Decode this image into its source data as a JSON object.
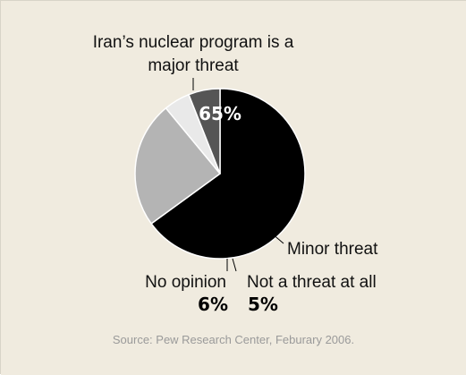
{
  "chart_data": {
    "type": "pie",
    "title": "",
    "slices": [
      {
        "label_lines": [
          "Iran’s nuclear program is a",
          "major threat"
        ],
        "value": 65,
        "value_label": "65%",
        "color": "#000000",
        "value_label_color": "#ffffff"
      },
      {
        "label_lines": [
          "Minor threat"
        ],
        "value": 24,
        "value_label": "24%",
        "color": "#b4b4b4",
        "value_label_color": "#000000"
      },
      {
        "label_lines": [
          "Not a threat at all"
        ],
        "value": 5,
        "value_label": "5%",
        "color": "#e9e9e9",
        "value_label_color": "#000000"
      },
      {
        "label_lines": [
          "No opinion"
        ],
        "value": 6,
        "value_label": "6%",
        "color": "#555555",
        "value_label_color": "#000000"
      }
    ],
    "start_angle_deg": 0,
    "direction": "clockwise"
  },
  "source": "Source: Pew Research Center, Feburary 2006.",
  "colors": {
    "background": "#f0ebdf",
    "leader_line": "#000000",
    "slice_edge": "#ffffff",
    "source_text": "#9a9a9a"
  }
}
